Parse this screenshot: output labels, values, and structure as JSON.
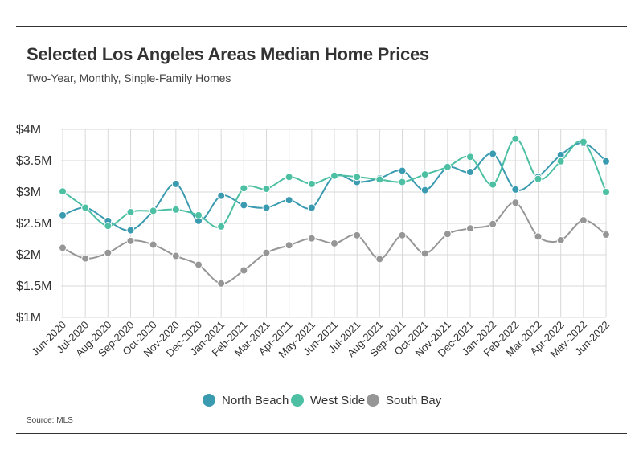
{
  "title": "Selected Los Angeles Areas Median Home Prices",
  "subtitle": "Two-Year, Monthly, Single-Family Homes",
  "source": "Source: MLS",
  "chart_data": {
    "type": "line",
    "title": "Selected Los Angeles Areas Median Home Prices",
    "subtitle": "Two-Year, Monthly, Single-Family Homes",
    "xlabel": "",
    "ylabel": "",
    "ylim": [
      1,
      4
    ],
    "y_ticks": [
      1,
      1.5,
      2,
      2.5,
      3,
      3.5,
      4
    ],
    "y_tick_labels": [
      "$1M",
      "$1.5M",
      "$2M",
      "$2.5M",
      "$3M",
      "$3.5M",
      "$4M"
    ],
    "grid": true,
    "legend_position": "bottom-center",
    "categories": [
      "Jun-2020",
      "Jul-2020",
      "Aug-2020",
      "Sep-2020",
      "Oct-2020",
      "Nov-2020",
      "Dec-2020",
      "Jan-2021",
      "Feb-2021",
      "Mar-2021",
      "Apr-2021",
      "May-2021",
      "Jun-2021",
      "Jul-2021",
      "Aug-2021",
      "Sep-2021",
      "Oct-2021",
      "Nov-2021",
      "Dec-2021",
      "Jan-2022",
      "Feb-2022",
      "Mar-2022",
      "Apr-2022",
      "May-2022",
      "Jun-2022"
    ],
    "series": [
      {
        "name": "North Beach",
        "color": "#3a9ab0",
        "values": [
          2.63,
          2.75,
          2.54,
          2.39,
          2.7,
          3.13,
          2.54,
          2.94,
          2.79,
          2.75,
          2.87,
          2.75,
          3.26,
          3.16,
          3.22,
          3.34,
          3.03,
          3.39,
          3.32,
          3.61,
          3.04,
          3.24,
          3.59,
          3.78,
          3.49
        ]
      },
      {
        "name": "West Side",
        "color": "#4dc0a3",
        "values": [
          3.01,
          2.75,
          2.46,
          2.68,
          2.7,
          2.72,
          2.63,
          2.45,
          3.06,
          3.05,
          3.24,
          3.13,
          3.26,
          3.24,
          3.2,
          3.16,
          3.28,
          3.4,
          3.56,
          3.12,
          3.85,
          3.21,
          3.49,
          3.8,
          3.0
        ]
      },
      {
        "name": "South Bay",
        "color": "#969696",
        "values": [
          2.11,
          1.94,
          2.03,
          2.22,
          2.16,
          1.98,
          1.84,
          1.54,
          1.75,
          2.03,
          2.15,
          2.26,
          2.18,
          2.31,
          1.93,
          2.31,
          2.02,
          2.33,
          2.42,
          2.49,
          2.83,
          2.29,
          2.23,
          2.55,
          2.32
        ]
      }
    ]
  }
}
